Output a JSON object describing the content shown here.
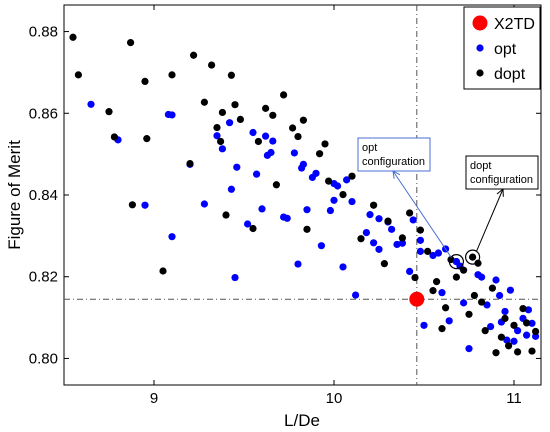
{
  "chart_data": {
    "type": "scatter",
    "title": "",
    "xlabel": "L/De",
    "ylabel": "Figure of Merit",
    "xlim": [
      8.5,
      11.15
    ],
    "ylim": [
      0.7935,
      0.8865
    ],
    "xticks": [
      9,
      10,
      11
    ],
    "yticks": [
      0.8,
      0.82,
      0.84,
      0.86,
      0.88
    ],
    "xtick_labels": [
      "9",
      "10",
      "11"
    ],
    "ytick_labels": [
      "0.80",
      "0.82",
      "0.84",
      "0.86",
      "0.88"
    ],
    "grid": false,
    "legend_position": "top-right",
    "series": [
      {
        "name": "X2TD",
        "color": "#ff0000",
        "marker": "large-circle",
        "points": [
          [
            10.46,
            0.8145
          ]
        ]
      },
      {
        "name": "opt",
        "color": "#0000ff",
        "marker": "circle",
        "points": [
          [
            8.65,
            0.8622
          ],
          [
            8.8,
            0.8535
          ],
          [
            8.95,
            0.8375
          ],
          [
            9.08,
            0.8597
          ],
          [
            9.1,
            0.8596
          ],
          [
            9.1,
            0.8298
          ],
          [
            9.2,
            0.8475
          ],
          [
            9.28,
            0.8378
          ],
          [
            9.35,
            0.8545
          ],
          [
            9.38,
            0.8513
          ],
          [
            9.42,
            0.8577
          ],
          [
            9.43,
            0.8414
          ],
          [
            9.45,
            0.8198
          ],
          [
            9.46,
            0.8468
          ],
          [
            9.52,
            0.8329
          ],
          [
            9.55,
            0.8553
          ],
          [
            9.57,
            0.8451
          ],
          [
            9.6,
            0.8366
          ],
          [
            9.62,
            0.8544
          ],
          [
            9.63,
            0.8497
          ],
          [
            9.65,
            0.8504
          ],
          [
            9.66,
            0.8532
          ],
          [
            9.72,
            0.8346
          ],
          [
            9.74,
            0.8343
          ],
          [
            9.78,
            0.8503
          ],
          [
            9.8,
            0.8231
          ],
          [
            9.82,
            0.8466
          ],
          [
            9.83,
            0.8475
          ],
          [
            9.85,
            0.8364
          ],
          [
            9.88,
            0.8443
          ],
          [
            9.9,
            0.8453
          ],
          [
            9.93,
            0.8276
          ],
          [
            9.98,
            0.8362
          ],
          [
            10.0,
            0.8387
          ],
          [
            10.0,
            0.8428
          ],
          [
            10.02,
            0.8422
          ],
          [
            10.05,
            0.8224
          ],
          [
            10.07,
            0.8437
          ],
          [
            10.1,
            0.8384
          ],
          [
            10.12,
            0.8155
          ],
          [
            10.18,
            0.8308
          ],
          [
            10.2,
            0.8352
          ],
          [
            10.22,
            0.8283
          ],
          [
            10.25,
            0.8267
          ],
          [
            10.25,
            0.8342
          ],
          [
            10.3,
            0.8334
          ],
          [
            10.32,
            0.8316
          ],
          [
            10.35,
            0.8279
          ],
          [
            10.38,
            0.8282
          ],
          [
            10.42,
            0.8213
          ],
          [
            10.44,
            0.8339
          ],
          [
            10.48,
            0.8262
          ],
          [
            10.48,
            0.8289
          ],
          [
            10.5,
            0.8081
          ],
          [
            10.55,
            0.8252
          ],
          [
            10.58,
            0.8258
          ],
          [
            10.6,
            0.8161
          ],
          [
            10.62,
            0.8268
          ],
          [
            10.68,
            0.8237
          ],
          [
            10.7,
            0.8226
          ],
          [
            10.72,
            0.8136
          ],
          [
            10.75,
            0.8024
          ],
          [
            10.8,
            0.8205
          ],
          [
            10.82,
            0.8199
          ],
          [
            10.85,
            0.8131
          ],
          [
            10.87,
            0.8078
          ],
          [
            10.9,
            0.8192
          ],
          [
            10.92,
            0.8154
          ],
          [
            10.95,
            0.8115
          ],
          [
            10.96,
            0.8045
          ],
          [
            10.98,
            0.8167
          ],
          [
            11.0,
            0.8042
          ],
          [
            11.02,
            0.8068
          ],
          [
            11.05,
            0.8098
          ],
          [
            11.08,
            0.8119
          ],
          [
            11.1,
            0.8086
          ],
          [
            11.12,
            0.8054
          ],
          [
            11.07,
            0.8057
          ],
          [
            10.93,
            0.8089
          ],
          [
            10.64,
            0.8092
          ]
        ]
      },
      {
        "name": "dopt",
        "color": "#000000",
        "marker": "circle",
        "points": [
          [
            8.55,
            0.8786
          ],
          [
            8.58,
            0.8694
          ],
          [
            8.75,
            0.8604
          ],
          [
            8.78,
            0.8542
          ],
          [
            8.87,
            0.8773
          ],
          [
            8.88,
            0.8376
          ],
          [
            8.95,
            0.8678
          ],
          [
            8.96,
            0.8538
          ],
          [
            9.05,
            0.8214
          ],
          [
            9.1,
            0.8694
          ],
          [
            9.2,
            0.8477
          ],
          [
            9.22,
            0.8742
          ],
          [
            9.28,
            0.8627
          ],
          [
            9.32,
            0.8718
          ],
          [
            9.35,
            0.8565
          ],
          [
            9.37,
            0.8531
          ],
          [
            9.38,
            0.8602
          ],
          [
            9.4,
            0.8351
          ],
          [
            9.43,
            0.8693
          ],
          [
            9.45,
            0.8621
          ],
          [
            9.48,
            0.8585
          ],
          [
            9.55,
            0.8318
          ],
          [
            9.58,
            0.8531
          ],
          [
            9.62,
            0.8612
          ],
          [
            9.66,
            0.8595
          ],
          [
            9.68,
            0.8425
          ],
          [
            9.72,
            0.8645
          ],
          [
            9.77,
            0.8564
          ],
          [
            9.8,
            0.8543
          ],
          [
            9.83,
            0.8583
          ],
          [
            9.85,
            0.8316
          ],
          [
            9.92,
            0.8501
          ],
          [
            9.95,
            0.8525
          ],
          [
            9.97,
            0.8434
          ],
          [
            10.05,
            0.8401
          ],
          [
            10.1,
            0.8446
          ],
          [
            10.15,
            0.8293
          ],
          [
            10.22,
            0.8375
          ],
          [
            10.28,
            0.8232
          ],
          [
            10.3,
            0.8336
          ],
          [
            10.38,
            0.8295
          ],
          [
            10.42,
            0.8356
          ],
          [
            10.45,
            0.8198
          ],
          [
            10.48,
            0.8314
          ],
          [
            10.52,
            0.8262
          ],
          [
            10.55,
            0.8166
          ],
          [
            10.57,
            0.8188
          ],
          [
            10.6,
            0.8073
          ],
          [
            10.65,
            0.8242
          ],
          [
            10.68,
            0.8199
          ],
          [
            10.72,
            0.8216
          ],
          [
            10.75,
            0.8108
          ],
          [
            10.78,
            0.8154
          ],
          [
            10.8,
            0.8233
          ],
          [
            10.82,
            0.8138
          ],
          [
            10.84,
            0.8068
          ],
          [
            10.88,
            0.8172
          ],
          [
            10.9,
            0.8014
          ],
          [
            10.93,
            0.8052
          ],
          [
            10.95,
            0.8098
          ],
          [
            10.97,
            0.8031
          ],
          [
            11.0,
            0.8081
          ],
          [
            11.02,
            0.8016
          ],
          [
            11.05,
            0.8122
          ],
          [
            11.07,
            0.8087
          ],
          [
            11.1,
            0.8018
          ],
          [
            11.12,
            0.8066
          ],
          [
            10.62,
            0.8124
          ]
        ]
      }
    ],
    "reference_lines": {
      "vertical_x": 10.46,
      "horizontal_y": 0.8145
    },
    "highlighted_points": [
      {
        "label": "opt configuration",
        "series": "opt",
        "x": 10.68,
        "y": 0.8237,
        "color": "#0000ff"
      },
      {
        "label": "dopt configuration",
        "series": "dopt",
        "x": 10.77,
        "y": 0.8248,
        "color": "#000000"
      }
    ],
    "annotations": [
      {
        "lines": [
          "opt",
          "configuration"
        ],
        "target": "opt configuration",
        "box_color": "#4a6fd4",
        "arrow_color": "#4a6fd4"
      },
      {
        "lines": [
          "dopt",
          "configuration"
        ],
        "target": "dopt configuration",
        "box_color": "#000000",
        "arrow_color": "#000000"
      }
    ]
  }
}
